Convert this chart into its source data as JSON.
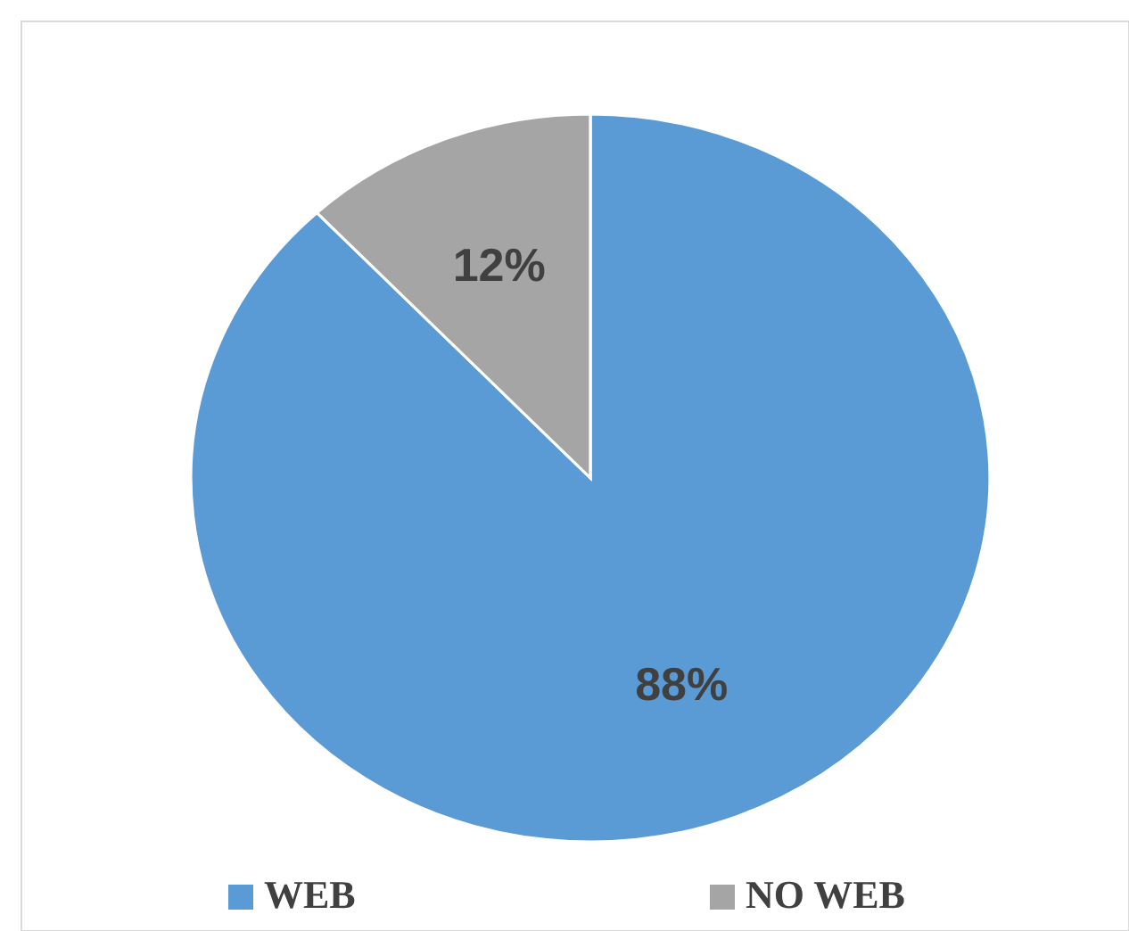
{
  "chart_data": {
    "type": "pie",
    "categories": [
      "WEB",
      "NO WEB"
    ],
    "values": [
      88,
      12
    ],
    "colors": [
      "#5b9bd5",
      "#a5a5a5"
    ],
    "value_labels": [
      "88%",
      "12%"
    ],
    "legend": "bottom"
  }
}
